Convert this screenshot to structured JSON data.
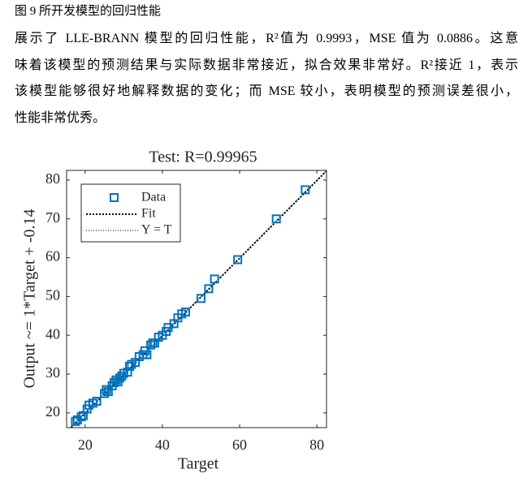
{
  "caption": "图 9 所开发模型的回归性能",
  "paragraph": [
    "展示了 LLE-BRANN 模型的回归性能，R²值为 0.9993，MSE 值为 0.0886。这意",
    "味着该模型的预测结果与实际数据非常接近，拟合效果非常好。R²接近 1，表示",
    "该模型能够很好地解释数据的变化；而 MSE 较小，表明模型的预测误差很小，",
    "性能非常优秀。"
  ],
  "chart_data": {
    "type": "scatter",
    "title": "Test: R=0.99965",
    "xlabel": "Target",
    "ylabel": "Output ~= 1*Target + -0.14",
    "xlim": [
      15.2,
      82.5
    ],
    "ylim": [
      16.2,
      82.5
    ],
    "xticks": [
      20,
      40,
      60,
      80
    ],
    "yticks": [
      20,
      30,
      40,
      50,
      60,
      70,
      80
    ],
    "legend": "upper left",
    "series": [
      {
        "name": "Data",
        "color": "#0072BD",
        "x": [
          17.5,
          18,
          19,
          19.5,
          20.5,
          21,
          22,
          23,
          25,
          25.5,
          26,
          27,
          27.5,
          28,
          28.5,
          29,
          29.5,
          30,
          31,
          31.5,
          32,
          33,
          34,
          35,
          35.5,
          36,
          37,
          37.5,
          38,
          39,
          40,
          41,
          41.5,
          43,
          44,
          45,
          46,
          50,
          52,
          53.5,
          59.5,
          69.5,
          77
        ],
        "y": [
          17.8,
          18.2,
          19,
          19.3,
          21,
          22,
          22.5,
          23,
          25,
          26,
          25.5,
          27,
          27.8,
          28.5,
          28,
          29,
          29.5,
          30.2,
          30.5,
          32,
          32.5,
          33,
          34.5,
          35,
          36,
          35,
          37.5,
          38,
          38,
          39.5,
          40,
          41,
          42,
          43,
          44.5,
          45.5,
          46,
          49.5,
          52,
          54.5,
          59.5,
          70,
          77.5
        ]
      }
    ],
    "fit": {
      "name": "Fit",
      "slope": 1,
      "intercept": -0.14
    },
    "identity": {
      "name": "Y = T"
    }
  }
}
